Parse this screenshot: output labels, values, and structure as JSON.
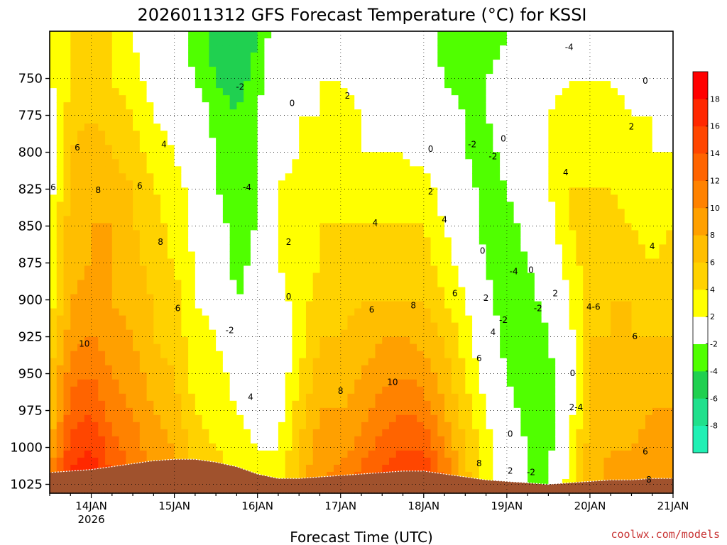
{
  "chart_data": {
    "type": "heatmap",
    "title": "2026011312 GFS Forecast Temperature (°C) for KSSI",
    "xlabel": "Forecast Time (UTC)",
    "ylabel": "",
    "credit": "coolwx.com/models",
    "x_ticks": [
      {
        "label": "14JAN",
        "sub": "2026",
        "hours_from_start": 12
      },
      {
        "label": "15JAN",
        "sub": "",
        "hours_from_start": 36
      },
      {
        "label": "16JAN",
        "sub": "",
        "hours_from_start": 60
      },
      {
        "label": "17JAN",
        "sub": "",
        "hours_from_start": 84
      },
      {
        "label": "18JAN",
        "sub": "",
        "hours_from_start": 108
      },
      {
        "label": "19JAN",
        "sub": "",
        "hours_from_start": 132
      },
      {
        "label": "20JAN",
        "sub": "",
        "hours_from_start": 156
      },
      {
        "label": "21JAN",
        "sub": "",
        "hours_from_start": 180
      }
    ],
    "x_range_hours": [
      0,
      180
    ],
    "y_ticks": [
      "750",
      "775",
      "800",
      "825",
      "850",
      "875",
      "900",
      "925",
      "950",
      "975",
      "1000",
      "1025"
    ],
    "y_range_hpa": [
      718,
      1031
    ],
    "colorbar": {
      "labels": [
        "-8",
        "-6",
        "-4",
        "-2",
        "2",
        "4",
        "6",
        "8",
        "10",
        "12",
        "14",
        "16",
        "18"
      ],
      "bins": [
        {
          "from": -10,
          "to": -8,
          "color": "#20f0b4"
        },
        {
          "from": -8,
          "to": -6,
          "color": "#20e08c"
        },
        {
          "from": -6,
          "to": -4,
          "color": "#20d050"
        },
        {
          "from": -4,
          "to": -2,
          "color": "#50ff00"
        },
        {
          "from": -2,
          "to": 2,
          "color": "#ffffff"
        },
        {
          "from": 2,
          "to": 4,
          "color": "#ffff00"
        },
        {
          "from": 4,
          "to": 6,
          "color": "#ffd200"
        },
        {
          "from": 6,
          "to": 8,
          "color": "#ffbe00"
        },
        {
          "from": 8,
          "to": 10,
          "color": "#ffa000"
        },
        {
          "from": 10,
          "to": 12,
          "color": "#ff8200"
        },
        {
          "from": 12,
          "to": 14,
          "color": "#ff6400"
        },
        {
          "from": 14,
          "to": 16,
          "color": "#ff4600"
        },
        {
          "from": 16,
          "to": 18,
          "color": "#ff2800"
        },
        {
          "from": 18,
          "to": 20,
          "color": "#ff0000"
        }
      ]
    },
    "surface_color": "#a0522d",
    "zero_contour_color": "#c8147a",
    "times_hours": [
      0,
      6,
      12,
      18,
      24,
      30,
      36,
      42,
      48,
      54,
      60,
      66,
      72,
      78,
      84,
      90,
      96,
      102,
      108,
      114,
      120,
      126,
      132,
      138,
      144,
      150,
      156,
      162,
      168,
      174,
      180
    ],
    "levels_hpa": [
      725,
      750,
      775,
      800,
      825,
      850,
      875,
      900,
      925,
      950,
      975,
      1000,
      1025
    ],
    "temperature_c": [
      [
        3,
        2,
        0,
        0,
        1,
        3,
        3,
        3,
        4,
        6,
        6,
        8,
        11
      ],
      [
        4,
        4,
        5,
        6,
        6,
        7,
        7,
        8,
        9,
        11,
        13,
        15,
        17
      ],
      [
        5,
        5,
        6,
        7,
        8,
        8,
        8,
        9,
        10,
        12,
        14,
        16,
        18
      ],
      [
        4,
        4,
        5,
        6,
        7,
        8,
        8,
        8,
        9,
        10,
        11,
        13,
        14
      ],
      [
        2,
        3,
        4,
        5,
        6,
        6,
        7,
        7,
        8,
        9,
        10,
        11,
        12
      ],
      [
        0,
        1,
        2,
        3,
        4,
        5,
        5,
        6,
        6,
        7,
        8,
        9,
        10
      ],
      [
        0,
        0,
        1,
        2,
        3,
        3,
        4,
        5,
        5,
        6,
        7,
        8,
        9
      ],
      [
        -3,
        -2,
        0,
        0,
        1,
        1,
        2,
        2,
        3,
        3,
        4,
        5,
        6
      ],
      [
        -5,
        -4,
        -3,
        -2,
        -2,
        -1,
        0,
        1,
        2,
        3,
        3,
        4,
        5
      ],
      [
        -6,
        -5,
        -4,
        -4,
        -3,
        -3,
        -3,
        -2,
        0,
        1,
        2,
        3,
        4
      ],
      [
        -4,
        -3,
        -2,
        -2,
        -2,
        -2,
        -1,
        -1,
        0,
        1,
        1,
        2,
        3
      ],
      [
        0,
        0,
        1,
        1,
        2,
        2,
        2,
        1,
        0,
        0,
        1,
        2,
        2
      ],
      [
        0,
        1,
        2,
        2,
        3,
        3,
        3,
        3,
        3,
        4,
        5,
        6,
        7
      ],
      [
        1,
        2,
        2,
        3,
        3,
        4,
        4,
        5,
        6,
        7,
        8,
        9,
        10
      ],
      [
        1,
        2,
        3,
        3,
        4,
        4,
        5,
        5,
        6,
        7,
        8,
        9,
        11
      ],
      [
        0,
        1,
        2,
        2,
        3,
        4,
        5,
        6,
        7,
        8,
        9,
        11,
        13
      ],
      [
        0,
        1,
        1,
        2,
        3,
        4,
        5,
        6,
        8,
        9,
        11,
        13,
        15
      ],
      [
        0,
        0,
        1,
        2,
        3,
        4,
        5,
        6,
        8,
        10,
        12,
        14,
        17
      ],
      [
        -1,
        0,
        0,
        1,
        3,
        4,
        5,
        6,
        7,
        9,
        11,
        14,
        16
      ],
      [
        -3,
        -2,
        -1,
        0,
        1,
        2,
        3,
        4,
        6,
        7,
        8,
        10,
        12
      ],
      [
        -4,
        -3,
        -2,
        -2,
        -1,
        0,
        1,
        2,
        3,
        4,
        5,
        6,
        7
      ],
      [
        -3,
        -2,
        -2,
        -3,
        -3,
        -3,
        -2,
        -1,
        0,
        1,
        2,
        3,
        3
      ],
      [
        -2,
        -1,
        -1,
        -1,
        -2,
        -3,
        -4,
        -4,
        -3,
        -2,
        -1,
        0,
        1
      ],
      [
        0,
        0,
        1,
        1,
        0,
        -1,
        -2,
        -3,
        -4,
        -4,
        -3,
        -2,
        -2
      ],
      [
        0,
        1,
        2,
        2,
        2,
        1,
        0,
        -1,
        -2,
        -3,
        -3,
        -3,
        -2
      ],
      [
        0,
        2,
        3,
        3,
        4,
        4,
        3,
        2,
        1,
        0,
        1,
        2,
        3
      ],
      [
        0,
        2,
        3,
        4,
        4,
        5,
        5,
        5,
        6,
        6,
        6,
        7,
        7
      ],
      [
        0,
        2,
        3,
        3,
        4,
        5,
        5,
        6,
        6,
        7,
        7,
        8,
        9
      ],
      [
        0,
        1,
        2,
        3,
        3,
        4,
        5,
        6,
        6,
        7,
        7,
        8,
        9
      ],
      [
        0,
        1,
        2,
        2,
        3,
        3,
        4,
        5,
        6,
        7,
        8,
        9,
        10
      ],
      [
        0,
        0,
        1,
        2,
        3,
        4,
        5,
        5,
        6,
        7,
        8,
        9,
        10
      ]
    ],
    "surface_hpa": [
      1017,
      1016,
      1015,
      1013,
      1011,
      1009,
      1008,
      1008,
      1010,
      1013,
      1018,
      1021,
      1021,
      1020,
      1019,
      1018,
      1017,
      1016,
      1016,
      1018,
      1020,
      1022,
      1023,
      1024,
      1025,
      1024,
      1023,
      1022,
      1022,
      1021,
      1021
    ],
    "contour_labels": [
      {
        "text": "-4",
        "t": 150,
        "p": 729
      },
      {
        "text": "0",
        "t": 172,
        "p": 752
      },
      {
        "text": "-2",
        "t": 55,
        "p": 756
      },
      {
        "text": "2",
        "t": 86,
        "p": 762
      },
      {
        "text": "0",
        "t": 70,
        "p": 767
      },
      {
        "text": "2",
        "t": 168,
        "p": 783
      },
      {
        "text": "0",
        "t": 131,
        "p": 791
      },
      {
        "text": "6",
        "t": 8,
        "p": 797
      },
      {
        "text": "4",
        "t": 33,
        "p": 795
      },
      {
        "text": "-2",
        "t": 122,
        "p": 795
      },
      {
        "text": "0",
        "t": 110,
        "p": 798
      },
      {
        "text": "-2",
        "t": 128,
        "p": 803
      },
      {
        "text": "4",
        "t": 149,
        "p": 814
      },
      {
        "text": "6",
        "t": 1,
        "p": 824
      },
      {
        "text": "8",
        "t": 14,
        "p": 826
      },
      {
        "text": "6",
        "t": 26,
        "p": 823
      },
      {
        "text": "-4",
        "t": 57,
        "p": 824
      },
      {
        "text": "2",
        "t": 110,
        "p": 827
      },
      {
        "text": "4",
        "t": 94,
        "p": 848
      },
      {
        "text": "4",
        "t": 114,
        "p": 846
      },
      {
        "text": "8",
        "t": 32,
        "p": 861
      },
      {
        "text": "2",
        "t": 69,
        "p": 861
      },
      {
        "text": "0",
        "t": 125,
        "p": 867
      },
      {
        "text": "4",
        "t": 174,
        "p": 864
      },
      {
        "text": "-4",
        "t": 134,
        "p": 881
      },
      {
        "text": "0",
        "t": 139,
        "p": 880
      },
      {
        "text": "6",
        "t": 117,
        "p": 896
      },
      {
        "text": "2",
        "t": 126,
        "p": 899
      },
      {
        "text": "2",
        "t": 146,
        "p": 896
      },
      {
        "text": "0",
        "t": 69,
        "p": 898
      },
      {
        "text": "-2",
        "t": 141,
        "p": 906
      },
      {
        "text": "8",
        "t": 105,
        "p": 904
      },
      {
        "text": "6",
        "t": 93,
        "p": 907
      },
      {
        "text": "6",
        "t": 37,
        "p": 906
      },
      {
        "text": "4-6",
        "t": 157,
        "p": 905
      },
      {
        "text": "-2",
        "t": 131,
        "p": 914
      },
      {
        "text": "4",
        "t": 128,
        "p": 922
      },
      {
        "text": "10",
        "t": 10,
        "p": 930
      },
      {
        "text": "-2",
        "t": 52,
        "p": 921
      },
      {
        "text": "6",
        "t": 169,
        "p": 925
      },
      {
        "text": "6",
        "t": 124,
        "p": 940
      },
      {
        "text": "0",
        "t": 151,
        "p": 950
      },
      {
        "text": "10",
        "t": 99,
        "p": 956
      },
      {
        "text": "8",
        "t": 84,
        "p": 962
      },
      {
        "text": "4",
        "t": 58,
        "p": 966
      },
      {
        "text": "2-4",
        "t": 152,
        "p": 973
      },
      {
        "text": "0",
        "t": 133,
        "p": 991
      },
      {
        "text": "6",
        "t": 172,
        "p": 1003
      },
      {
        "text": "8",
        "t": 124,
        "p": 1011
      },
      {
        "text": "2",
        "t": 133,
        "p": 1016
      },
      {
        "text": "-2",
        "t": 139,
        "p": 1017
      },
      {
        "text": "8",
        "t": 173,
        "p": 1022
      }
    ]
  }
}
